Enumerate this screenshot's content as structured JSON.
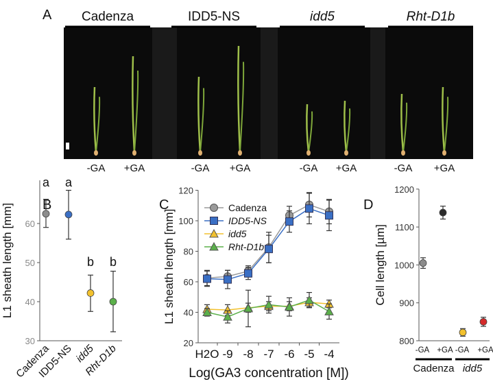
{
  "panel_labels": [
    "A",
    "B",
    "C",
    "D"
  ],
  "panel_a": {
    "genotypes": [
      "Cadenza",
      "IDD5-NS",
      "idd5",
      "Rht-D1b"
    ],
    "genotype_italic": [
      false,
      "partial",
      true,
      true
    ],
    "treatments": [
      "-GA",
      "+GA"
    ]
  },
  "chart_data": [
    {
      "type": "scatter",
      "panel": "B",
      "ylabel": "L1 sheath length [mm]",
      "categories": [
        "Cadenza",
        "IDD5-NS",
        "idd5",
        "Rht-D1b"
      ],
      "values": [
        62.5,
        62.3,
        42.2,
        40.0
      ],
      "error_low": [
        59.0,
        56.0,
        37.5,
        32.3
      ],
      "error_high": [
        66.2,
        68.5,
        46.8,
        47.8
      ],
      "significance": [
        "a",
        "a",
        "b",
        "b"
      ],
      "colors": [
        "#8c8c8c",
        "#3a6fc4",
        "#f2c12e",
        "#5bb04a"
      ],
      "ylim": [
        30,
        70
      ],
      "yticks": [
        "30",
        "40",
        "50",
        "60"
      ]
    },
    {
      "type": "line",
      "panel": "C",
      "xlabel": "Log(GA3 concentration [M])",
      "ylabel": "L1 sheath length [mm]",
      "categories": [
        "H2O",
        "-9",
        "-8",
        "-7",
        "-6",
        "-5",
        "-4"
      ],
      "ylim": [
        20,
        120
      ],
      "yticks": [
        "20",
        "40",
        "60",
        "80",
        "100",
        "120"
      ],
      "legend_position": "top-left",
      "series": [
        {
          "name": "Cadenza",
          "marker": "circle",
          "color": "#9a9a9a",
          "values": [
            62.5,
            63.5,
            67,
            82.5,
            103.5,
            110.5,
            106
          ],
          "err": [
            5,
            4,
            3.5,
            10,
            6,
            8,
            8
          ]
        },
        {
          "name": "IDD5-NS",
          "marker": "square",
          "color": "#3a6fc4",
          "values": [
            62,
            61.5,
            65.5,
            81.5,
            99.5,
            108,
            103.5
          ],
          "err": [
            5,
            6,
            4,
            9,
            7,
            10,
            10
          ]
        },
        {
          "name": "idd5",
          "marker": "triangle",
          "color": "#f2c12e",
          "values": [
            42,
            41.5,
            43,
            44,
            44,
            46.5,
            45.5
          ],
          "err": [
            3,
            3.5,
            3,
            3,
            3,
            3,
            2.5
          ]
        },
        {
          "name": "Rht-D1b",
          "marker": "triangle",
          "color": "#5bb04a",
          "values": [
            40,
            37,
            42.5,
            45,
            43.5,
            48,
            40.5
          ],
          "err": [
            2.5,
            4,
            12,
            5.5,
            6,
            5,
            5
          ]
        }
      ]
    },
    {
      "type": "scatter",
      "panel": "D",
      "ylabel": "Cell length [µm]",
      "categories": [
        "-GA",
        "+GA",
        "-GA",
        "+GA"
      ],
      "groups": [
        "Cadenza",
        "idd5"
      ],
      "values": [
        1005,
        1138,
        822,
        850
      ],
      "err": [
        14,
        17,
        10,
        12
      ],
      "colors": [
        "#8c8c8c",
        "#2b2b2b",
        "#f2c12e",
        "#d42a2a"
      ],
      "ylim": [
        800,
        1200
      ],
      "yticks": [
        "800",
        "900",
        "1000",
        "1100",
        "1200"
      ]
    }
  ]
}
